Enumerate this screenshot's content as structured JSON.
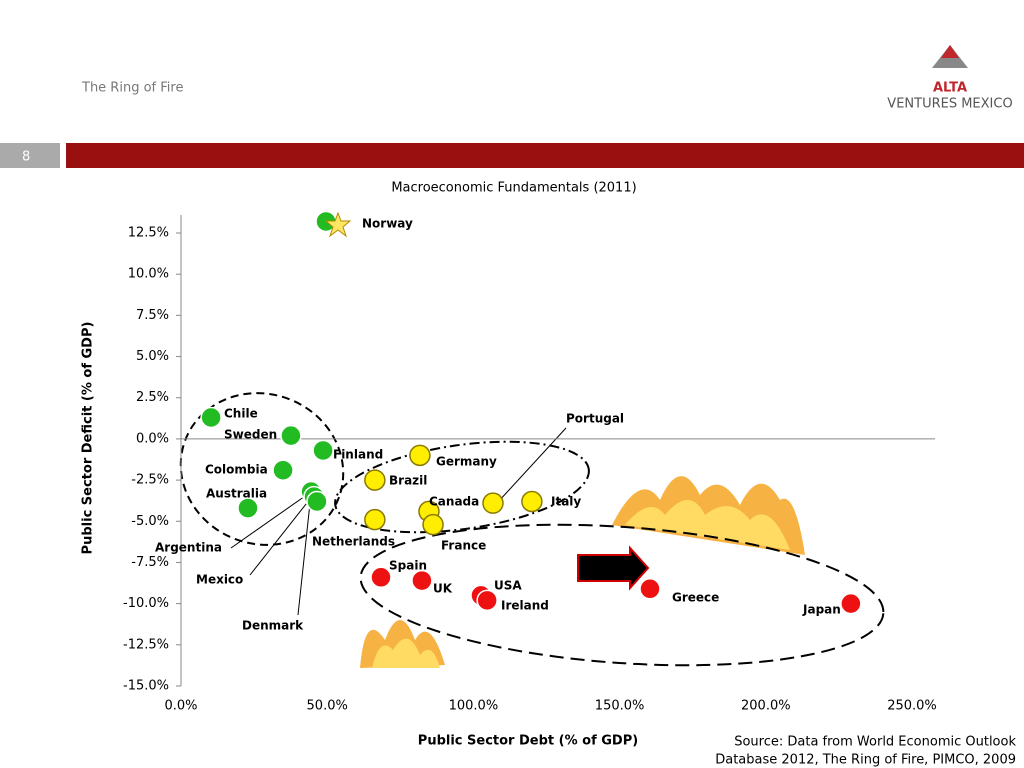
{
  "slide": {
    "title": "The Ring of Fire",
    "number": "8",
    "logo": "ALTA",
    "logo_sub": "VENTURES MEXICO",
    "source": [
      "Source: Data from World Economic Outlook",
      "Database 2012, The Ring of Fire, PIMCO, 2009"
    ]
  },
  "chart_data": {
    "type": "scatter",
    "title": "Macroeconomic Fundamentals (2011)",
    "x_label": "Public Sector Debt (% of GDP)",
    "y_label": "Public Sector Deficit (% of GDP)",
    "labels": [
      "Norway",
      "Chile",
      "Sweden",
      "Finland",
      "Colombia",
      "Australia",
      "Argentina",
      "Mexico",
      "Denmark",
      "Germany",
      "Brazil",
      "Canada",
      "France",
      "Netherlands",
      "Portugal",
      "Italy",
      "Spain",
      "UK",
      "USA",
      "Ireland",
      "Greece",
      "Japan"
    ],
    "x": [
      49.6,
      10.3,
      37.6,
      48.6,
      34.9,
      22.9,
      44.5,
      45.5,
      46.5,
      81.7,
      66.3,
      84.8,
      86.2,
      66.3,
      106.7,
      120.0,
      68.4,
      82.4,
      102.6,
      104.7,
      160.4,
      229.1
    ],
    "y": [
      13.2,
      1.3,
      0.2,
      -0.7,
      -1.9,
      -4.2,
      -3.2,
      -3.5,
      -3.8,
      -1.0,
      -2.5,
      -4.4,
      -5.2,
      -4.9,
      -3.9,
      -3.8,
      -8.4,
      -8.6,
      -9.5,
      -9.8,
      -9.1,
      -10.0
    ],
    "colors": [
      "#22bb22",
      "#22bb22",
      "#22bb22",
      "#22bb22",
      "#22bb22",
      "#22bb22",
      "#22bb22",
      "#22bb22",
      "#22bb22",
      "#ffee00",
      "#ffee00",
      "#ffee00",
      "#ffee00",
      "#ffee00",
      "#ffee00",
      "#ffee00",
      "#ee1111",
      "#ee1111",
      "#ee1111",
      "#ee1111",
      "#ee1111",
      "#ee1111"
    ],
    "xlim": [
      0,
      250
    ],
    "ylim": [
      -15,
      12.5
    ],
    "xticks": [
      {
        "value": 0,
        "label": "0.0%"
      },
      {
        "value": 50,
        "label": "50.0%"
      },
      {
        "value": 100,
        "label": "100.0%"
      },
      {
        "value": 150,
        "label": "150.0%"
      },
      {
        "value": 200,
        "label": "200.0%"
      },
      {
        "value": 250,
        "label": "250.0%"
      }
    ],
    "yticks": [
      {
        "value": 12.5,
        "label": "12.5%"
      },
      {
        "value": 10,
        "label": "10.0%"
      },
      {
        "value": 7.5,
        "label": "7.5%"
      },
      {
        "value": 5,
        "label": "5.0%"
      },
      {
        "value": 2.5,
        "label": "2.5%"
      },
      {
        "value": 0,
        "label": "0.0%"
      },
      {
        "value": -2.5,
        "label": "-2.5%"
      },
      {
        "value": -5,
        "label": "-5.0%"
      },
      {
        "value": -7.5,
        "label": "-7.5%"
      },
      {
        "value": -10,
        "label": "-10.0%"
      },
      {
        "value": -12.5,
        "label": "-12.5%"
      },
      {
        "value": -15,
        "label": "-15.0%"
      }
    ]
  }
}
